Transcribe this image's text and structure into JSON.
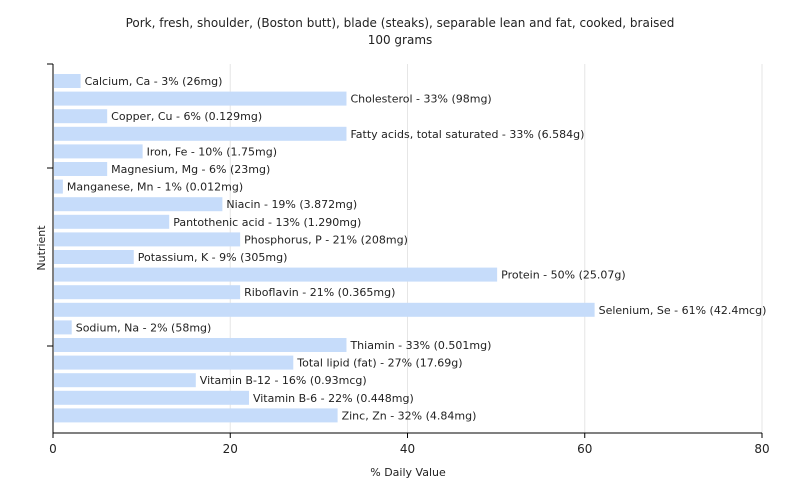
{
  "chart_data": {
    "type": "bar",
    "orientation": "horizontal",
    "title": "Pork, fresh, shoulder, (Boston butt), blade (steaks), separable lean and fat, cooked, braised",
    "subtitle": "100 grams",
    "xlabel": "% Daily Value",
    "ylabel": "Nutrient",
    "xlim": [
      0,
      80
    ],
    "xticks": [
      0,
      20,
      40,
      60,
      80
    ],
    "grid": true,
    "bar_color": "#c6dcfa",
    "categories": [
      "Calcium, Ca",
      "Cholesterol",
      "Copper, Cu",
      "Fatty acids, total saturated",
      "Iron, Fe",
      "Magnesium, Mg",
      "Manganese, Mn",
      "Niacin",
      "Pantothenic acid",
      "Phosphorus, P",
      "Potassium, K",
      "Protein",
      "Riboflavin",
      "Selenium, Se",
      "Sodium, Na",
      "Thiamin",
      "Total lipid (fat)",
      "Vitamin B-12",
      "Vitamin B-6",
      "Zinc, Zn"
    ],
    "values": [
      3,
      33,
      6,
      33,
      10,
      6,
      1,
      19,
      13,
      21,
      9,
      50,
      21,
      61,
      2,
      33,
      27,
      16,
      22,
      32
    ],
    "labels": [
      "Calcium, Ca - 3% (26mg)",
      "Cholesterol - 33% (98mg)",
      "Copper, Cu - 6% (0.129mg)",
      "Fatty acids, total saturated - 33% (6.584g)",
      "Iron, Fe - 10% (1.75mg)",
      "Magnesium, Mg - 6% (23mg)",
      "Manganese, Mn - 1% (0.012mg)",
      "Niacin - 19% (3.872mg)",
      "Pantothenic acid - 13% (1.290mg)",
      "Phosphorus, P - 21% (208mg)",
      "Potassium, K - 9% (305mg)",
      "Protein - 50% (25.07g)",
      "Riboflavin - 21% (0.365mg)",
      "Selenium, Se - 61% (42.4mcg)",
      "Sodium, Na - 2% (58mg)",
      "Thiamin - 33% (0.501mg)",
      "Total lipid (fat) - 27% (17.69g)",
      "Vitamin B-12 - 16% (0.93mcg)",
      "Vitamin B-6 - 22% (0.448mg)",
      "Zinc, Zn - 32% (4.84mg)"
    ]
  }
}
